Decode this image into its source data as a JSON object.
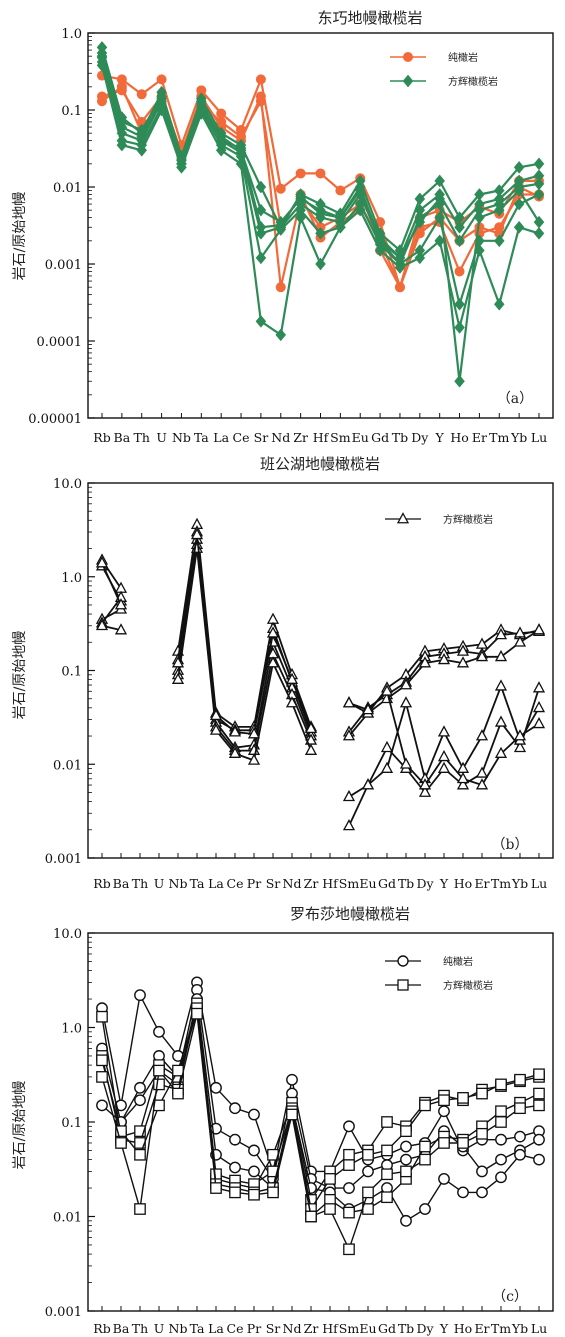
{
  "common": {
    "ylabel": "岩石/原始地幔",
    "colors": {
      "dunite_a": "#f26a3a",
      "harzburgite_a": "#2e8b57",
      "black": "#111111"
    }
  },
  "chart_data": [
    {
      "id": "a",
      "type": "line",
      "title": "东巧地幔橄榄岩",
      "tag": "（a）",
      "ylabel": "岩石/原始地幔",
      "yscale": "log",
      "ylim": [
        1e-05,
        1.0
      ],
      "yticks": [
        "0.00001",
        "0.0001",
        "0.001",
        "0.01",
        "0.1",
        "1.0"
      ],
      "categories": [
        "Rb",
        "Ba",
        "Th",
        "U",
        "Nb",
        "Ta",
        "La",
        "Ce",
        "Sr",
        "Nd",
        "Zr",
        "Hf",
        "Sm",
        "Eu",
        "Gd",
        "Tb",
        "Dy",
        "Y",
        "Ho",
        "Er",
        "Tm",
        "Yb",
        "Lu"
      ],
      "legend": [
        {
          "label": "纯橄岩",
          "marker": "circle",
          "color": "#f26a3a"
        },
        {
          "label": "方辉橄榄岩",
          "marker": "diamond",
          "color": "#2e8b57"
        }
      ],
      "series": [
        {
          "group": "纯橄岩",
          "values": [
            0.28,
            0.25,
            0.16,
            0.25,
            0.035,
            0.18,
            0.09,
            0.055,
            0.25,
            0.0095,
            0.015,
            0.015,
            0.009,
            0.013,
            0.0035,
            0.0005,
            0.004,
            0.005,
            0.0035,
            0.0055,
            0.0045,
            0.012,
            0.012
          ]
        },
        {
          "group": "纯橄岩",
          "values": [
            0.15,
            0.18,
            0.07,
            0.15,
            0.028,
            0.15,
            0.06,
            0.04,
            0.15,
            0.0005,
            0.007,
            0.003,
            0.004,
            0.006,
            0.002,
            0.0005,
            0.003,
            0.0035,
            0.0008,
            0.0025,
            0.003,
            0.008,
            0.008
          ]
        },
        {
          "group": "纯橄岩",
          "values": [
            0.13,
            0.2,
            0.05,
            0.12,
            0.025,
            0.12,
            0.07,
            0.045,
            0.13,
            0.003,
            0.008,
            0.0022,
            0.0035,
            0.005,
            0.0015,
            0.0005,
            0.0025,
            0.004,
            0.002,
            0.003,
            0.0025,
            0.01,
            0.0075
          ]
        },
        {
          "group": "方辉橄榄岩",
          "values": [
            0.65,
            0.08,
            0.05,
            0.17,
            0.025,
            0.14,
            0.05,
            0.035,
            0.01,
            0.003,
            0.008,
            0.006,
            0.0045,
            0.012,
            0.0025,
            0.0015,
            0.007,
            0.012,
            0.004,
            0.008,
            0.009,
            0.018,
            0.02
          ]
        },
        {
          "group": "方辉橄榄岩",
          "values": [
            0.55,
            0.06,
            0.045,
            0.14,
            0.022,
            0.12,
            0.045,
            0.03,
            0.005,
            0.0035,
            0.007,
            0.005,
            0.004,
            0.009,
            0.0022,
            0.0012,
            0.005,
            0.008,
            0.003,
            0.006,
            0.007,
            0.012,
            0.014
          ]
        },
        {
          "group": "方辉橄榄岩",
          "values": [
            0.48,
            0.05,
            0.04,
            0.13,
            0.02,
            0.11,
            0.04,
            0.028,
            0.0025,
            0.003,
            0.006,
            0.004,
            0.0035,
            0.008,
            0.002,
            0.001,
            0.004,
            0.006,
            0.002,
            0.005,
            0.006,
            0.01,
            0.011
          ]
        },
        {
          "group": "方辉橄榄岩",
          "values": [
            0.42,
            0.04,
            0.035,
            0.11,
            0.02,
            0.1,
            0.035,
            0.025,
            0.0012,
            0.0028,
            0.005,
            0.0025,
            0.003,
            0.006,
            0.0018,
            0.001,
            0.0015,
            0.004,
            0.0003,
            0.002,
            0.002,
            0.006,
            0.008
          ]
        },
        {
          "group": "方辉橄榄岩",
          "values": [
            0.38,
            0.035,
            0.03,
            0.1,
            0.018,
            0.09,
            0.03,
            0.02,
            0.00018,
            0.00012,
            0.004,
            0.001,
            0.003,
            0.005,
            0.0015,
            0.0009,
            0.0012,
            0.002,
            0.00015,
            0.0015,
            0.0003,
            0.003,
            0.0025
          ]
        },
        {
          "group": "方辉橄榄岩",
          "values": [
            0.5,
            0.07,
            0.055,
            0.15,
            0.023,
            0.13,
            0.04,
            0.032,
            0.003,
            0.0032,
            0.0075,
            0.0045,
            0.004,
            0.01,
            0.002,
            0.0012,
            0.0035,
            0.007,
            3e-05,
            0.004,
            0.005,
            0.009,
            0.0035
          ]
        }
      ]
    },
    {
      "id": "b",
      "type": "line",
      "title": "班公湖地幔橄榄岩",
      "tag": "（b）",
      "ylabel": "岩石/原始地幔",
      "yscale": "log",
      "ylim": [
        0.001,
        10.0
      ],
      "yticks": [
        "0.001",
        "0.01",
        "0.1",
        "1.0",
        "10.0"
      ],
      "categories": [
        "Rb",
        "Ba",
        "Th",
        "U",
        "Nb",
        "Ta",
        "La",
        "Ce",
        "Pr",
        "Sr",
        "Nd",
        "Zr",
        "Hf",
        "Sm",
        "Eu",
        "Gd",
        "Tb",
        "Dy",
        "Y",
        "Ho",
        "Er",
        "Tm",
        "Yb",
        "Lu"
      ],
      "legend": [
        {
          "label": "方辉橄榄岩",
          "marker": "triangle",
          "color": "#111111"
        }
      ],
      "series": [
        {
          "values": [
            1.5,
            0.75,
            null,
            null,
            0.16,
            3.6,
            0.035,
            0.025,
            0.025,
            0.35,
            0.09,
            0.025,
            null,
            0.045,
            0.035,
            0.065,
            0.09,
            0.16,
            0.17,
            0.18,
            0.19,
            0.27,
            0.24,
            0.27
          ]
        },
        {
          "values": [
            1.3,
            0.55,
            null,
            null,
            0.13,
            3.0,
            0.03,
            0.023,
            0.023,
            0.28,
            0.075,
            0.022,
            null,
            0.022,
            0.04,
            0.055,
            0.075,
            0.14,
            0.15,
            0.16,
            0.15,
            0.24,
            0.25,
            0.26
          ]
        },
        {
          "values": [
            0.35,
            0.45,
            null,
            null,
            0.1,
            2.5,
            0.028,
            0.015,
            0.016,
            0.2,
            0.065,
            0.02,
            null,
            0.02,
            0.035,
            0.05,
            0.07,
            0.12,
            0.13,
            0.12,
            0.14,
            0.14,
            0.2,
            0.27
          ]
        },
        {
          "values": [
            0.32,
            0.6,
            null,
            null,
            0.09,
            2.2,
            0.025,
            0.014,
            0.014,
            0.15,
            0.055,
            0.018,
            null,
            0.0045,
            0.006,
            0.015,
            0.009,
            0.005,
            0.009,
            0.006,
            0.008,
            0.028,
            0.015,
            0.065
          ]
        },
        {
          "values": [
            0.3,
            0.27,
            null,
            null,
            0.08,
            2.0,
            0.023,
            0.013,
            0.011,
            0.12,
            0.045,
            0.014,
            null,
            0.0022,
            0.006,
            0.009,
            0.045,
            0.007,
            0.022,
            0.009,
            0.02,
            0.068,
            0.018,
            0.04
          ]
        },
        {
          "values": [
            1.4,
            0.5,
            null,
            null,
            0.12,
            2.8,
            0.033,
            0.022,
            0.021,
            0.25,
            0.08,
            0.024,
            null,
            0.045,
            0.038,
            0.06,
            0.01,
            0.006,
            0.012,
            0.007,
            0.006,
            0.013,
            0.02,
            0.027
          ]
        }
      ]
    },
    {
      "id": "c",
      "type": "line",
      "title": "罗布莎地幔橄榄岩",
      "tag": "（c）",
      "ylabel": "岩石/原始地幔",
      "yscale": "log",
      "ylim": [
        0.001,
        10.0
      ],
      "yticks": [
        "0.001",
        "0.01",
        "0.1",
        "1.0",
        "10.0"
      ],
      "categories": [
        "Rb",
        "Ba",
        "Th",
        "U",
        "Nb",
        "Ta",
        "La",
        "Ce",
        "Pr",
        "Sr",
        "Nd",
        "Zr",
        "Hf",
        "Sm",
        "Eu",
        "Gd",
        "Tb",
        "Dy",
        "Y",
        "Ho",
        "Er",
        "Tm",
        "Yb",
        "Lu"
      ],
      "legend": [
        {
          "label": "纯橄岩",
          "marker": "circle",
          "color": "#111111"
        },
        {
          "label": "方辉橄榄岩",
          "marker": "square",
          "color": "#111111"
        }
      ],
      "series": [
        {
          "group": "纯橄岩",
          "values": [
            1.6,
            0.15,
            2.2,
            0.9,
            0.5,
            3.0,
            0.23,
            0.14,
            0.12,
            0.03,
            0.28,
            0.03,
            0.03,
            0.09,
            0.04,
            0.045,
            0.055,
            0.06,
            0.13,
            0.05,
            0.065,
            0.065,
            0.07,
            0.08
          ]
        },
        {
          "group": "纯橄岩",
          "values": [
            0.6,
            0.1,
            0.23,
            0.5,
            0.3,
            2.5,
            0.085,
            0.065,
            0.05,
            0.025,
            0.2,
            0.025,
            0.02,
            0.02,
            0.03,
            0.035,
            0.04,
            0.045,
            0.08,
            0.055,
            0.03,
            0.04,
            0.05,
            0.065
          ]
        },
        {
          "group": "纯橄岩",
          "values": [
            0.15,
            0.1,
            0.17,
            0.35,
            0.25,
            2.0,
            0.045,
            0.033,
            0.03,
            0.02,
            0.15,
            0.02,
            0.018,
            0.012,
            0.015,
            0.02,
            0.009,
            0.012,
            0.025,
            0.018,
            0.018,
            0.026,
            0.045,
            0.04
          ]
        },
        {
          "group": "方辉橄榄岩",
          "values": [
            1.3,
            0.07,
            0.08,
            0.4,
            0.3,
            1.5,
            0.025,
            0.022,
            0.02,
            0.045,
            0.16,
            0.015,
            0.03,
            0.045,
            0.05,
            0.1,
            0.09,
            0.16,
            0.19,
            0.17,
            0.22,
            0.24,
            0.27,
            0.3
          ]
        },
        {
          "group": "方辉橄榄岩",
          "values": [
            0.5,
            0.065,
            0.06,
            0.25,
            0.22,
            1.8,
            0.028,
            0.024,
            0.022,
            0.03,
            0.14,
            0.012,
            0.025,
            0.035,
            0.045,
            0.05,
            0.08,
            0.15,
            0.17,
            0.18,
            0.2,
            0.25,
            0.28,
            0.32
          ]
        },
        {
          "group": "方辉橄榄岩",
          "values": [
            0.45,
            0.08,
            0.045,
            0.15,
            0.35,
            1.6,
            0.022,
            0.02,
            0.018,
            0.02,
            0.13,
            0.01,
            0.015,
            0.011,
            0.012,
            0.016,
            0.025,
            0.055,
            0.07,
            0.065,
            0.09,
            0.13,
            0.16,
            0.2
          ]
        },
        {
          "group": "方辉橄榄岩",
          "values": [
            0.3,
            0.06,
            0.012,
            0.35,
            0.2,
            1.4,
            0.02,
            0.018,
            0.017,
            0.018,
            0.12,
            0.01,
            0.012,
            0.0045,
            0.018,
            0.028,
            0.03,
            0.04,
            0.06,
            0.06,
            0.075,
            0.1,
            0.14,
            0.15
          ]
        }
      ]
    }
  ]
}
